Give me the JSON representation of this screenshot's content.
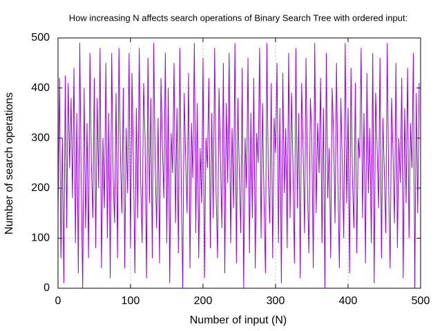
{
  "chart_data": {
    "type": "line",
    "title": "How increasing N affects search operations of Binary Search Tree with ordered input:",
    "x_label": "Number of input (N)",
    "y_label": "Number of search operations",
    "color": "#9400d3",
    "grid": true,
    "xlim": [
      0,
      500
    ],
    "ylim": [
      0,
      500
    ],
    "xticks": [
      0,
      100,
      200,
      300,
      400,
      500
    ],
    "yticks": [
      0,
      100,
      200,
      300,
      400,
      500
    ],
    "x": [
      0,
      2,
      4,
      6,
      8,
      10,
      12,
      14,
      16,
      18,
      20,
      22,
      24,
      26,
      28,
      30,
      32,
      34,
      36,
      38,
      40,
      42,
      44,
      46,
      48,
      50,
      52,
      54,
      56,
      58,
      60,
      62,
      64,
      66,
      68,
      70,
      72,
      74,
      76,
      78,
      80,
      82,
      84,
      86,
      88,
      90,
      92,
      94,
      96,
      98,
      100,
      102,
      104,
      106,
      108,
      110,
      112,
      114,
      116,
      118,
      120,
      122,
      124,
      126,
      128,
      130,
      132,
      134,
      136,
      138,
      140,
      142,
      144,
      146,
      148,
      150,
      152,
      154,
      156,
      158,
      160,
      162,
      164,
      166,
      168,
      170,
      172,
      174,
      176,
      178,
      180,
      182,
      184,
      186,
      188,
      190,
      192,
      194,
      196,
      198,
      200,
      202,
      204,
      206,
      208,
      210,
      212,
      214,
      216,
      218,
      220,
      222,
      224,
      226,
      228,
      230,
      232,
      234,
      236,
      238,
      240,
      242,
      244,
      246,
      248,
      250,
      252,
      254,
      256,
      258,
      260,
      262,
      264,
      266,
      268,
      270,
      272,
      274,
      276,
      278,
      280,
      282,
      284,
      286,
      288,
      290,
      292,
      294,
      296,
      298,
      300,
      302,
      304,
      306,
      308,
      310,
      312,
      314,
      316,
      318,
      320,
      322,
      324,
      326,
      328,
      330,
      332,
      334,
      336,
      338,
      340,
      342,
      344,
      346,
      348,
      350,
      352,
      354,
      356,
      358,
      360,
      362,
      364,
      366,
      368,
      370,
      372,
      374,
      376,
      378,
      380,
      382,
      384,
      386,
      388,
      390,
      392,
      394,
      396,
      398,
      400,
      402,
      404,
      406,
      408,
      410,
      412,
      414,
      416,
      418,
      420,
      422,
      424,
      426,
      428,
      430,
      432,
      434,
      436,
      438,
      440,
      442,
      444,
      446,
      448,
      450,
      452,
      454,
      456,
      458,
      460,
      462,
      464,
      466,
      468,
      470,
      472,
      474,
      476,
      478,
      480,
      482,
      484,
      486,
      488,
      490,
      492,
      494,
      496,
      498
    ],
    "values": [
      150,
      420,
      60,
      300,
      10,
      425,
      120,
      410,
      240,
      380,
      180,
      440,
      90,
      350,
      30,
      490,
      210,
      0,
      400,
      120,
      330,
      60,
      470,
      250,
      140,
      420,
      80,
      380,
      200,
      480,
      40,
      300,
      160,
      450,
      100,
      350,
      20,
      470,
      220,
      130,
      390,
      60,
      480,
      270,
      150,
      400,
      40,
      320,
      190,
      470,
      80,
      430,
      250,
      30,
      360,
      140,
      480,
      210,
      90,
      410,
      300,
      20,
      460,
      170,
      380,
      60,
      490,
      240,
      120,
      340,
      50,
      420,
      280,
      180,
      470,
      90,
      400,
      10,
      310,
      230,
      450,
      130,
      360,
      70,
      480,
      200,
      0,
      390,
      260,
      150,
      430,
      40,
      330,
      220,
      490,
      110,
      370,
      60,
      280,
      170,
      460,
      20,
      300,
      240,
      420,
      80,
      350,
      140,
      480,
      190,
      60,
      400,
      260,
      120,
      450,
      30,
      370,
      210,
      470,
      90,
      320,
      160,
      490,
      50,
      380,
      230,
      110,
      440,
      0,
      300,
      200,
      460,
      70,
      350,
      140,
      420,
      40,
      310,
      250,
      480,
      100,
      370,
      180,
      30,
      490,
      220,
      130,
      410,
      60,
      340,
      270,
      450,
      90,
      360,
      10,
      430,
      190,
      320,
      80,
      470,
      140,
      390,
      240,
      50,
      480,
      160,
      350,
      20,
      410,
      280,
      110,
      460,
      200,
      70,
      380,
      300,
      40,
      490,
      150,
      330,
      230,
      420,
      90,
      360,
      0,
      470,
      180,
      280,
      60,
      400,
      310,
      130,
      450,
      210,
      40,
      380,
      250,
      100,
      490,
      170,
      360,
      30,
      440,
      220,
      120,
      410,
      70,
      300,
      260,
      480,
      140,
      350,
      50,
      430,
      190,
      320,
      90,
      470,
      10,
      390,
      280,
      160,
      460,
      60,
      340,
      230,
      110,
      490,
      200,
      40,
      380,
      270,
      130,
      450,
      80,
      300,
      210,
      420,
      20,
      360,
      170,
      440,
      100,
      330,
      240,
      470,
      0,
      390,
      150,
      410
    ]
  }
}
